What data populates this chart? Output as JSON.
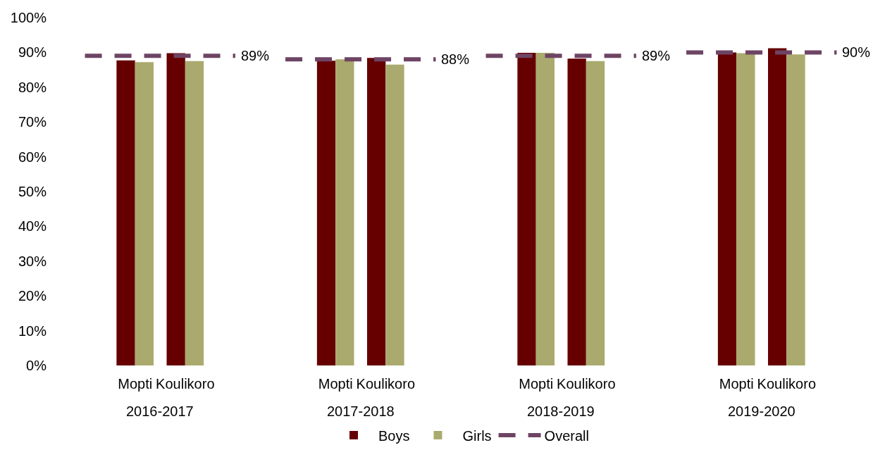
{
  "chart_data": {
    "type": "bar",
    "categories": [
      null,
      "Mopti",
      "Koulikoro",
      null,
      null,
      "Mopti",
      "Koulikoro",
      null,
      null,
      "Mopti",
      "Koulikoro",
      null,
      null,
      "Mopti",
      "Koulikoro",
      null
    ],
    "series": [
      {
        "name": "Boys",
        "color": "#660000",
        "values": [
          null,
          87.7,
          89.8,
          null,
          null,
          87.6,
          88.4,
          null,
          null,
          89.9,
          88.2,
          null,
          null,
          90.0,
          91.2,
          null
        ]
      },
      {
        "name": "Girls",
        "color": "#aaaa6e",
        "values": [
          null,
          87.2,
          87.5,
          null,
          null,
          88.0,
          86.5,
          null,
          null,
          89.9,
          87.5,
          null,
          null,
          89.8,
          89.4,
          null
        ]
      },
      {
        "name": "Overall",
        "type": "line",
        "color": "#6e4464",
        "line_style": "dashed",
        "values": [
          89,
          89,
          89,
          89,
          null,
          null,
          null,
          null,
          null,
          null,
          null,
          null,
          null,
          null,
          null,
          null
        ],
        "value_labels": [
          null,
          null,
          null,
          "89%",
          null,
          null,
          null,
          null,
          null,
          null,
          null,
          null,
          null,
          null,
          null,
          null
        ]
      },
      {
        "type": "line",
        "color": "#6e4464",
        "line_style": "dashed",
        "values": [
          null,
          null,
          null,
          null,
          88,
          88,
          88,
          88,
          null,
          null,
          null,
          null,
          null,
          null,
          null,
          null
        ],
        "value_labels": [
          null,
          null,
          null,
          null,
          null,
          null,
          null,
          "88%",
          null,
          null,
          null,
          null,
          null,
          null,
          null,
          null
        ]
      },
      {
        "type": "line",
        "color": "#6e4464",
        "line_style": "dashed",
        "values": [
          null,
          null,
          null,
          null,
          null,
          null,
          null,
          null,
          89,
          89,
          89,
          89,
          null,
          null,
          null,
          null
        ],
        "value_labels": [
          null,
          null,
          null,
          null,
          null,
          null,
          null,
          null,
          null,
          null,
          null,
          "89%",
          null,
          null,
          null,
          null
        ]
      },
      {
        "type": "line",
        "color": "#6e4464",
        "line_style": "dashed",
        "values": [
          null,
          null,
          null,
          null,
          null,
          null,
          null,
          null,
          null,
          null,
          null,
          null,
          90,
          90,
          90,
          90
        ],
        "value_labels": [
          null,
          null,
          null,
          null,
          null,
          null,
          null,
          null,
          null,
          null,
          null,
          null,
          null,
          null,
          null,
          "90%"
        ]
      }
    ],
    "annotations": [
      "2016-2017",
      "2017-2018",
      "2018-2019",
      "2019-2020"
    ],
    "ylim": [
      0,
      100
    ],
    "yticks": [
      {
        "value": 0,
        "label": "0%"
      },
      {
        "value": 10,
        "label": "10%"
      },
      {
        "value": 20,
        "label": "20%"
      },
      {
        "value": 30,
        "label": "30%"
      },
      {
        "value": 40,
        "label": "40%"
      },
      {
        "value": 50,
        "label": "50%"
      },
      {
        "value": 60,
        "label": "60%"
      },
      {
        "value": 70,
        "label": "70%"
      },
      {
        "value": 80,
        "label": "80%"
      },
      {
        "value": 90,
        "label": "90%"
      },
      {
        "value": 100,
        "label": "100%"
      }
    ],
    "grid": false,
    "legend": "bottom"
  }
}
